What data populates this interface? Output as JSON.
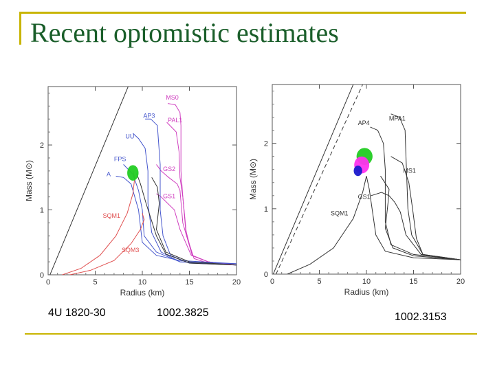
{
  "slide": {
    "title": "Recent optomistic estimates",
    "captions": [
      "4U 1820-30",
      "1002.3825",
      "1002.3153"
    ]
  },
  "colors": {
    "title": "#1a5e2a",
    "frame": "#c8b400",
    "black": "#333333",
    "blue": "#4455cc",
    "magenta": "#d040c0",
    "red": "#e05050",
    "green": "#22cc22",
    "pink": "#ff33ee",
    "darkblue": "#1a1acc"
  },
  "chart_data": [
    {
      "type": "line",
      "title": "",
      "xlabel": "Radius (km)",
      "ylabel": "Mass (M⊙)",
      "xlim": [
        0,
        20
      ],
      "ylim": [
        0,
        2.9
      ],
      "xticks": [
        "0",
        "5",
        "10",
        "15",
        "20"
      ],
      "yticks": [
        "0",
        "1",
        "2"
      ],
      "series": [
        {
          "name": "",
          "color": "black",
          "dash": false,
          "points": [
            [
              0.2,
              0
            ],
            [
              8.5,
              2.9
            ]
          ]
        },
        {
          "name": "MS0",
          "color": "magenta",
          "label_at": [
            12.5,
            2.7
          ],
          "points": [
            [
              20,
              0.15
            ],
            [
              17,
              0.18
            ],
            [
              15.5,
              0.25
            ],
            [
              14.7,
              0.6
            ],
            [
              14.3,
              1.2
            ],
            [
              14.1,
              1.6
            ],
            [
              14.1,
              2.3
            ],
            [
              14.0,
              2.5
            ],
            [
              13.5,
              2.62
            ],
            [
              12.7,
              2.64
            ]
          ]
        },
        {
          "name": "PAL1",
          "color": "magenta",
          "label_at": [
            12.7,
            2.35
          ],
          "points": [
            [
              20,
              0.15
            ],
            [
              17,
              0.2
            ],
            [
              15.3,
              0.3
            ],
            [
              14.6,
              0.7
            ],
            [
              14.3,
              1.2
            ],
            [
              14.0,
              1.5
            ],
            [
              13.9,
              1.9
            ],
            [
              13.6,
              2.2
            ],
            [
              12.6,
              2.35
            ]
          ]
        },
        {
          "name": "GS2",
          "color": "magenta",
          "label_at": [
            12.2,
            1.6
          ],
          "points": [
            [
              20,
              0.15
            ],
            [
              17,
              0.2
            ],
            [
              15.3,
              0.3
            ],
            [
              14.3,
              0.8
            ],
            [
              14.0,
              1.3
            ],
            [
              13.7,
              1.4
            ],
            [
              12.8,
              1.5
            ],
            [
              12.0,
              1.6
            ],
            [
              11.5,
              1.7
            ]
          ]
        },
        {
          "name": "GS1",
          "color": "magenta",
          "label_at": [
            12.2,
            1.18
          ],
          "points": [
            [
              20,
              0.15
            ],
            [
              17,
              0.2
            ],
            [
              15.2,
              0.3
            ],
            [
              14.0,
              0.7
            ],
            [
              13.4,
              1.0
            ],
            [
              12.7,
              1.1
            ],
            [
              12.0,
              1.2
            ],
            [
              11.5,
              1.25
            ]
          ]
        },
        {
          "name": "AP3",
          "color": "blue",
          "label_at": [
            10.1,
            2.42
          ],
          "points": [
            [
              20,
              0.15
            ],
            [
              15,
              0.18
            ],
            [
              13,
              0.3
            ],
            [
              12.2,
              0.6
            ],
            [
              11.9,
              1.0
            ],
            [
              11.9,
              1.7
            ],
            [
              11.6,
              2.3
            ],
            [
              10.9,
              2.4
            ],
            [
              10.3,
              2.4
            ]
          ]
        },
        {
          "name": "UU",
          "color": "blue",
          "label_at": [
            8.2,
            2.1
          ],
          "points": [
            [
              20,
              0.15
            ],
            [
              14,
              0.2
            ],
            [
              12,
              0.35
            ],
            [
              11.0,
              0.65
            ],
            [
              10.6,
              1.1
            ],
            [
              10.6,
              1.6
            ],
            [
              10.3,
              1.95
            ],
            [
              9.6,
              2.1
            ],
            [
              9.0,
              2.18
            ]
          ]
        },
        {
          "name": "FPS",
          "color": "blue",
          "label_at": [
            7.0,
            1.75
          ],
          "points": [
            [
              20,
              0.17
            ],
            [
              14,
              0.2
            ],
            [
              11.5,
              0.35
            ],
            [
              10.2,
              0.6
            ],
            [
              10.0,
              1.0
            ],
            [
              9.6,
              1.3
            ],
            [
              9.0,
              1.55
            ],
            [
              8.0,
              1.7
            ]
          ]
        },
        {
          "name": "A",
          "color": "blue",
          "label_at": [
            6.2,
            1.52
          ],
          "points": [
            [
              20,
              0.17
            ],
            [
              14,
              0.22
            ],
            [
              11.5,
              0.3
            ],
            [
              10.0,
              0.5
            ],
            [
              9.6,
              1.0
            ],
            [
              8.8,
              1.4
            ],
            [
              8.0,
              1.5
            ],
            [
              7.2,
              1.52
            ]
          ]
        },
        {
          "name": "",
          "color": "black",
          "dash": false,
          "points": [
            [
              20,
              0.15
            ],
            [
              15,
              0.18
            ],
            [
              12.5,
              0.32
            ],
            [
              11.5,
              0.6
            ],
            [
              10.4,
              1.1
            ],
            [
              9.8,
              1.4
            ],
            [
              9.4,
              1.56
            ]
          ]
        },
        {
          "name": "",
          "color": "black",
          "dash": false,
          "points": [
            [
              20,
              0.15
            ],
            [
              15,
              0.2
            ],
            [
              12.5,
              0.35
            ],
            [
              11.5,
              0.7
            ],
            [
              11.8,
              1.1
            ],
            [
              11.6,
              1.35
            ],
            [
              11.0,
              1.5
            ]
          ]
        },
        {
          "name": "SQM1",
          "color": "red",
          "label_at": [
            5.8,
            0.88
          ],
          "points": [
            [
              1.5,
              0
            ],
            [
              3.5,
              0.1
            ],
            [
              5.5,
              0.3
            ],
            [
              7.2,
              0.6
            ],
            [
              8.4,
              0.95
            ],
            [
              9.0,
              1.25
            ],
            [
              9.2,
              1.5
            ],
            [
              9.0,
              1.6
            ]
          ]
        },
        {
          "name": "SQM3",
          "color": "red",
          "label_at": [
            7.8,
            0.35
          ],
          "points": [
            [
              2.3,
              0
            ],
            [
              4.5,
              0.07
            ],
            [
              7.0,
              0.22
            ],
            [
              8.8,
              0.48
            ],
            [
              9.8,
              0.7
            ],
            [
              10.2,
              0.85
            ],
            [
              10.0,
              0.95
            ]
          ]
        }
      ],
      "regions": [
        {
          "name": "4U 1820-30 constraint",
          "color": "green",
          "center": [
            9.0,
            1.57
          ],
          "radius": [
            0.6,
            0.12
          ]
        }
      ]
    },
    {
      "type": "line",
      "title": "",
      "xlabel": "Radius (km)",
      "ylabel": "Mass (M⊙)",
      "xlim": [
        0,
        20
      ],
      "ylim": [
        0,
        2.9
      ],
      "xticks": [
        "0",
        "5",
        "10",
        "15",
        "20"
      ],
      "yticks": [
        "0",
        "1",
        "2"
      ],
      "series": [
        {
          "name": "",
          "color": "black",
          "dash": false,
          "points": [
            [
              0.1,
              0
            ],
            [
              8.6,
              2.9
            ]
          ]
        },
        {
          "name": "",
          "color": "black",
          "dash": true,
          "points": [
            [
              0.4,
              0
            ],
            [
              9.6,
              2.9
            ]
          ]
        },
        {
          "name": "MPA1",
          "color": "black",
          "label_at": [
            12.4,
            2.35
          ],
          "points": [
            [
              20,
              0.22
            ],
            [
              16,
              0.3
            ],
            [
              14.8,
              0.6
            ],
            [
              14.4,
              1.0
            ],
            [
              14.2,
              1.8
            ],
            [
              14.1,
              2.2
            ],
            [
              13.5,
              2.4
            ],
            [
              12.6,
              2.45
            ]
          ]
        },
        {
          "name": "AP4",
          "color": "black",
          "label_at": [
            9.1,
            2.28
          ],
          "points": [
            [
              20,
              0.22
            ],
            [
              15,
              0.3
            ],
            [
              12.6,
              0.45
            ],
            [
              12.0,
              0.8
            ],
            [
              12.0,
              1.6
            ],
            [
              11.8,
              2.0
            ],
            [
              11.2,
              2.2
            ],
            [
              10.4,
              2.25
            ]
          ]
        },
        {
          "name": "MS1",
          "color": "black",
          "label_at": [
            13.9,
            1.55
          ],
          "points": [
            [
              20,
              0.22
            ],
            [
              16,
              0.3
            ],
            [
              15.3,
              0.55
            ],
            [
              14.9,
              1.0
            ],
            [
              14.5,
              1.4
            ],
            [
              13.8,
              1.7
            ],
            [
              12.6,
              1.8
            ]
          ]
        },
        {
          "name": "GS1",
          "color": "black",
          "label_at": [
            9.1,
            1.15
          ],
          "points": [
            [
              20,
              0.22
            ],
            [
              15.8,
              0.3
            ],
            [
              14.2,
              0.6
            ],
            [
              13.6,
              0.95
            ],
            [
              13.0,
              1.1
            ],
            [
              12.4,
              1.2
            ],
            [
              11.6,
              1.25
            ],
            [
              10.5,
              1.2
            ]
          ]
        },
        {
          "name": "SQM1",
          "color": "black",
          "label_at": [
            6.2,
            0.9
          ],
          "points": [
            [
              1.6,
              0
            ],
            [
              4.0,
              0.15
            ],
            [
              6.5,
              0.4
            ],
            [
              8.6,
              0.85
            ],
            [
              9.6,
              1.25
            ],
            [
              10.0,
              1.5
            ]
          ]
        },
        {
          "name": "",
          "color": "black",
          "dash": false,
          "points": [
            [
              20,
              0.22
            ],
            [
              15,
              0.25
            ],
            [
              12.0,
              0.35
            ],
            [
              11.0,
              0.6
            ],
            [
              10.6,
              1.0
            ],
            [
              10.3,
              1.3
            ],
            [
              10.0,
              1.5
            ]
          ]
        },
        {
          "name": "",
          "color": "black",
          "dash": false,
          "points": [
            [
              20,
              0.22
            ],
            [
              15,
              0.28
            ],
            [
              12.8,
              0.4
            ],
            [
              12.0,
              0.7
            ],
            [
              12.3,
              1.1
            ],
            [
              12.4,
              1.3
            ],
            [
              11.5,
              1.5
            ]
          ]
        }
      ],
      "regions": [
        {
          "name": "1002.3825 constraint",
          "color": "green",
          "center": [
            9.8,
            1.8
          ],
          "radius": [
            0.85,
            0.13
          ]
        },
        {
          "name": "1002.3153 constraint",
          "color": "pink",
          "center": [
            9.5,
            1.67
          ],
          "radius": [
            0.8,
            0.13
          ]
        },
        {
          "name": "1002.3153 dark constraint",
          "color": "darkblue",
          "center": [
            9.1,
            1.58
          ],
          "radius": [
            0.45,
            0.08
          ]
        }
      ]
    }
  ]
}
